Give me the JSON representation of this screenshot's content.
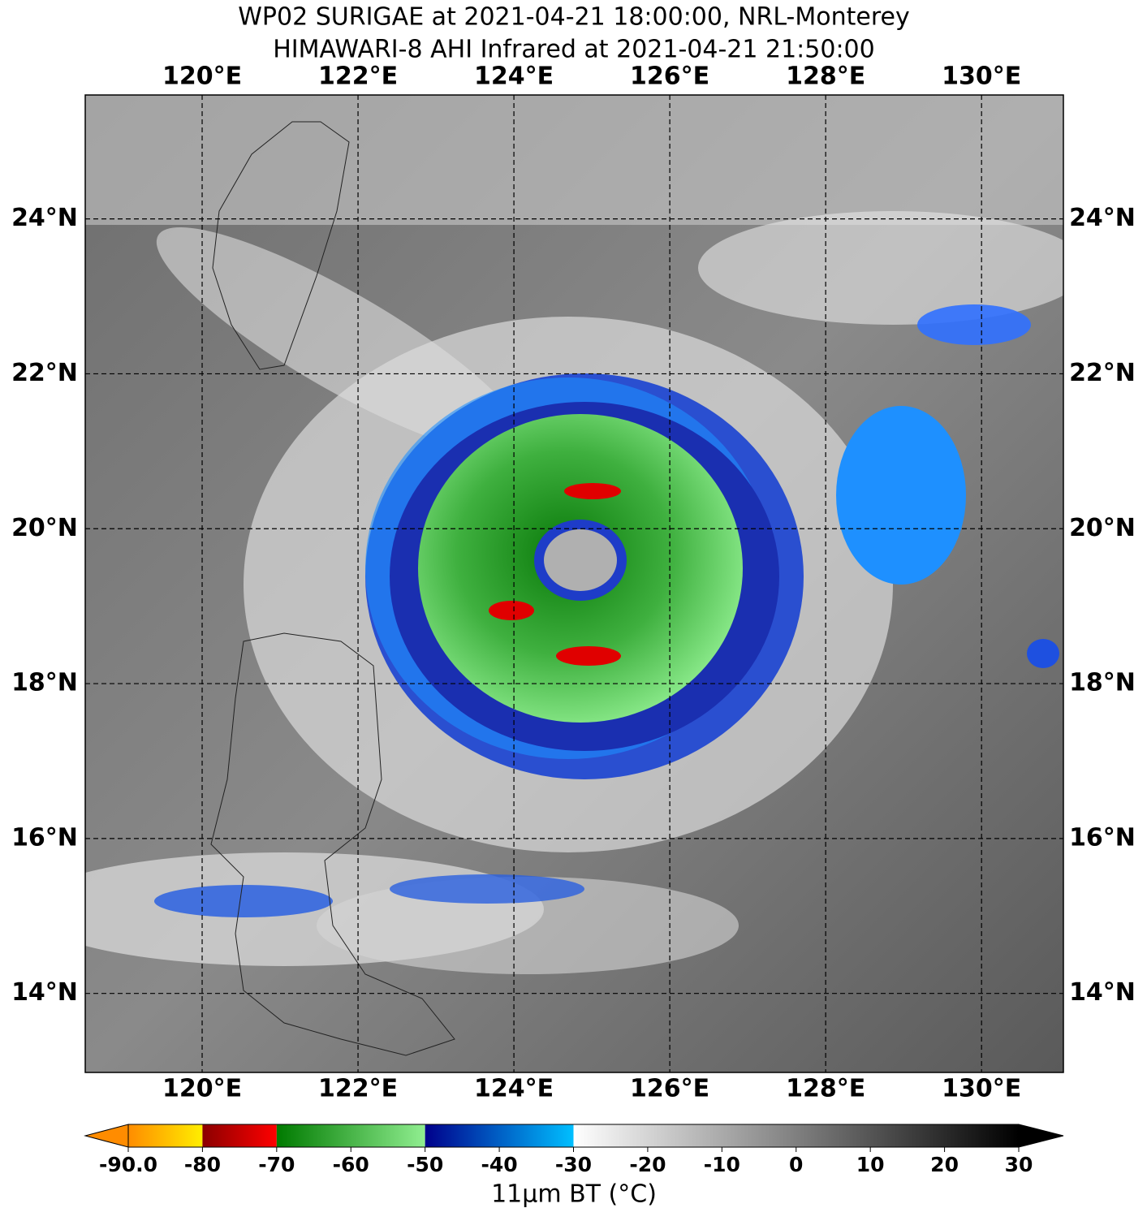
{
  "title": [
    "WP02 SURIGAE at 2021-04-21 18:00:00, NRL-Monterey",
    "HIMAWARI-8 AHI Infrared at 2021-04-21 21:50:00"
  ],
  "map": {
    "xlim": [
      118.5,
      131.05
    ],
    "ylim": [
      12.98,
      25.6
    ],
    "lon_ticks": [
      {
        "value": 120,
        "label": "120°E"
      },
      {
        "value": 122,
        "label": "122°E"
      },
      {
        "value": 124,
        "label": "124°E"
      },
      {
        "value": 126,
        "label": "126°E"
      },
      {
        "value": 128,
        "label": "128°E"
      },
      {
        "value": 130,
        "label": "130°E"
      }
    ],
    "lat_ticks": [
      {
        "value": 14,
        "label": "14°N"
      },
      {
        "value": 16,
        "label": "16°N"
      },
      {
        "value": 18,
        "label": "18°N"
      },
      {
        "value": 20,
        "label": "20°N"
      },
      {
        "value": 22,
        "label": "22°N"
      },
      {
        "value": 24,
        "label": "24°N"
      }
    ],
    "grid": true
  },
  "colorbar": {
    "lim": [
      -90,
      30
    ],
    "ticks": [
      {
        "value": -90,
        "label": "-90.0"
      },
      -80,
      -70,
      -60,
      -50,
      -40,
      -30,
      -20,
      -10,
      0,
      10,
      20,
      30
    ],
    "segments": [
      {
        "from": -90,
        "to": -80,
        "colors": [
          "#ff8c00",
          "#ffee00"
        ]
      },
      {
        "from": -80,
        "to": -70,
        "colors": [
          "#8b0000",
          "#ff0000"
        ]
      },
      {
        "from": -70,
        "to": -50,
        "colors": [
          "#007a00",
          "#90ee90"
        ]
      },
      {
        "from": -50,
        "to": -30,
        "colors": [
          "#00008b",
          "#00bfff"
        ]
      },
      {
        "from": -30,
        "to": 30,
        "colors": [
          "#ffffff",
          "#000000"
        ]
      }
    ],
    "label": "11μm BT (°C)"
  }
}
